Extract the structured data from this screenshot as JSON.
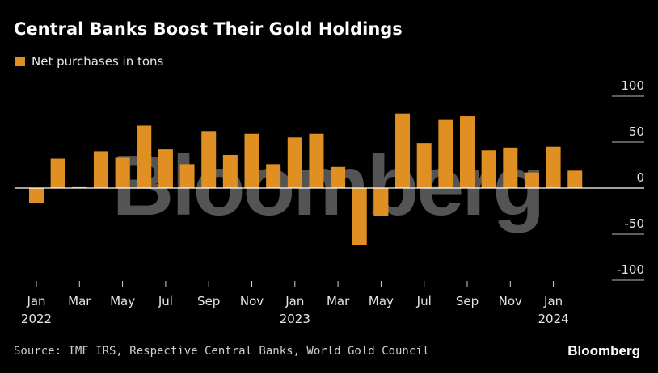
{
  "header": {
    "title": "Central Banks Boost Their Gold Holdings",
    "legend_label": "Net purchases in tons"
  },
  "footer": {
    "source": "Source: IMF IRS, Respective Central Banks, World Gold Council",
    "brand": "Bloomberg"
  },
  "watermark": "Bloomberg",
  "colors": {
    "bar": "#E08F22",
    "background": "#000000",
    "text": "#FFFFFF",
    "grid": "#BBBBBB"
  },
  "chart_data": {
    "type": "bar",
    "months": [
      "Jan 2022",
      "Feb 2022",
      "Mar 2022",
      "Apr 2022",
      "May 2022",
      "Jun 2022",
      "Jul 2022",
      "Aug 2022",
      "Sep 2022",
      "Oct 2022",
      "Nov 2022",
      "Dec 2022",
      "Jan 2023",
      "Feb 2023",
      "Mar 2023",
      "Apr 2023",
      "May 2023",
      "Jun 2023",
      "Jul 2023",
      "Aug 2023",
      "Sep 2023",
      "Oct 2023",
      "Nov 2023",
      "Dec 2023",
      "Jan 2024",
      "Feb 2024"
    ],
    "series": [
      {
        "name": "Net purchases in tons",
        "values": [
          -16,
          32,
          1,
          40,
          33,
          68,
          42,
          26,
          62,
          36,
          59,
          26,
          55,
          59,
          23,
          -62,
          -30,
          81,
          49,
          74,
          78,
          41,
          44,
          17,
          45,
          19
        ]
      }
    ],
    "x_tick_labels": [
      {
        "month": "Jan",
        "year": "2022",
        "index": 0
      },
      {
        "month": "Mar",
        "year": "",
        "index": 2
      },
      {
        "month": "May",
        "year": "",
        "index": 4
      },
      {
        "month": "Jul",
        "year": "",
        "index": 6
      },
      {
        "month": "Sep",
        "year": "",
        "index": 8
      },
      {
        "month": "Nov",
        "year": "",
        "index": 10
      },
      {
        "month": "Jan",
        "year": "2023",
        "index": 12
      },
      {
        "month": "Mar",
        "year": "",
        "index": 14
      },
      {
        "month": "May",
        "year": "",
        "index": 16
      },
      {
        "month": "Jul",
        "year": "",
        "index": 18
      },
      {
        "month": "Sep",
        "year": "",
        "index": 20
      },
      {
        "month": "Nov",
        "year": "",
        "index": 22
      },
      {
        "month": "Jan",
        "year": "2024",
        "index": 24
      }
    ],
    "y_ticks": [
      100,
      50,
      0,
      -50,
      -100
    ],
    "ylim": [
      -100,
      100
    ],
    "y_axis_side": "right",
    "grid": true,
    "legend_position": "top-left"
  }
}
